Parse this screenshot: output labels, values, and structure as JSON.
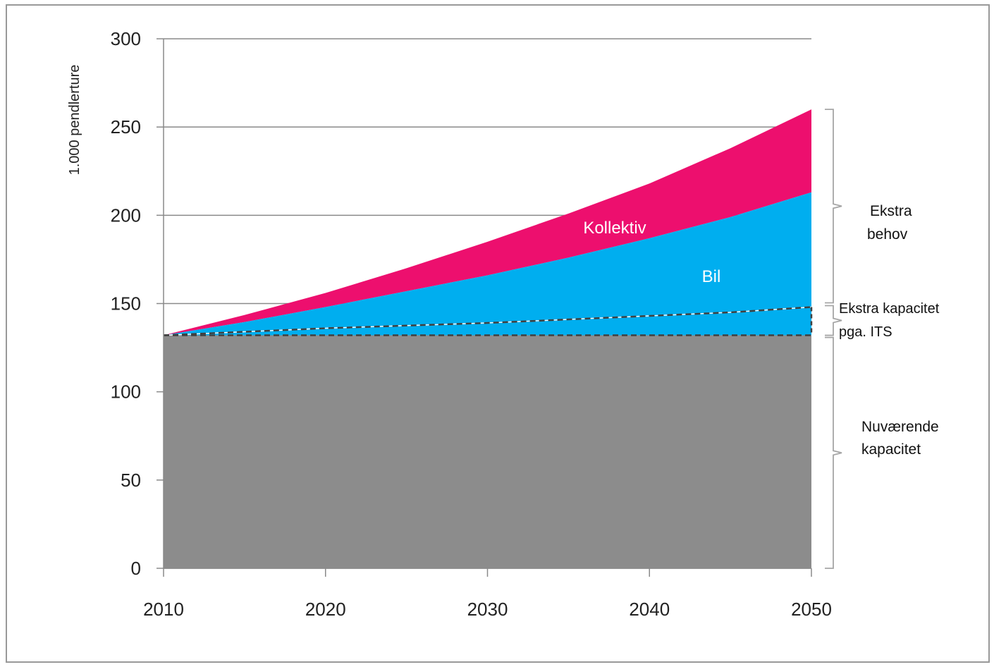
{
  "chart_data": {
    "type": "area",
    "ylabel": "1.000 pendlerture",
    "xlabel": "",
    "title": "",
    "xlim": [
      2010,
      2050
    ],
    "ylim": [
      0,
      300
    ],
    "x_ticks": [
      "2010",
      "2020",
      "2030",
      "2040",
      "2050"
    ],
    "y_ticks": [
      "0",
      "50",
      "100",
      "150",
      "200",
      "250",
      "300"
    ],
    "grid": "horizontal",
    "x": [
      2010,
      2015,
      2020,
      2025,
      2030,
      2035,
      2040,
      2045,
      2050
    ],
    "layers": {
      "nuvaerende": {
        "values": [
          132,
          132,
          132,
          132,
          132,
          132,
          132,
          132,
          132
        ],
        "color": "#8c8c8c"
      },
      "its_top": {
        "values": [
          132,
          134,
          136,
          137.5,
          139,
          141,
          143,
          145,
          148
        ],
        "color": "#00aeef"
      },
      "bil_top": {
        "values": [
          132,
          139.5,
          148,
          157,
          166,
          176,
          187,
          199,
          213
        ],
        "color": "#00aeef"
      },
      "kollektiv_top": {
        "values": [
          132,
          143.5,
          156,
          170,
          185,
          201,
          218,
          238,
          260
        ],
        "color": "#ed0f6e"
      }
    },
    "labels": {
      "kollektiv": "Kollektiv",
      "bil": "Bil"
    },
    "annotations": {
      "ekstra_behov": [
        "Ekstra",
        "behov"
      ],
      "ekstra_kapacitet": [
        "Ekstra kapacitet",
        "pga. ITS"
      ],
      "nuvaerende_kapacitet": [
        "Nuværende",
        "kapacitet"
      ]
    }
  }
}
